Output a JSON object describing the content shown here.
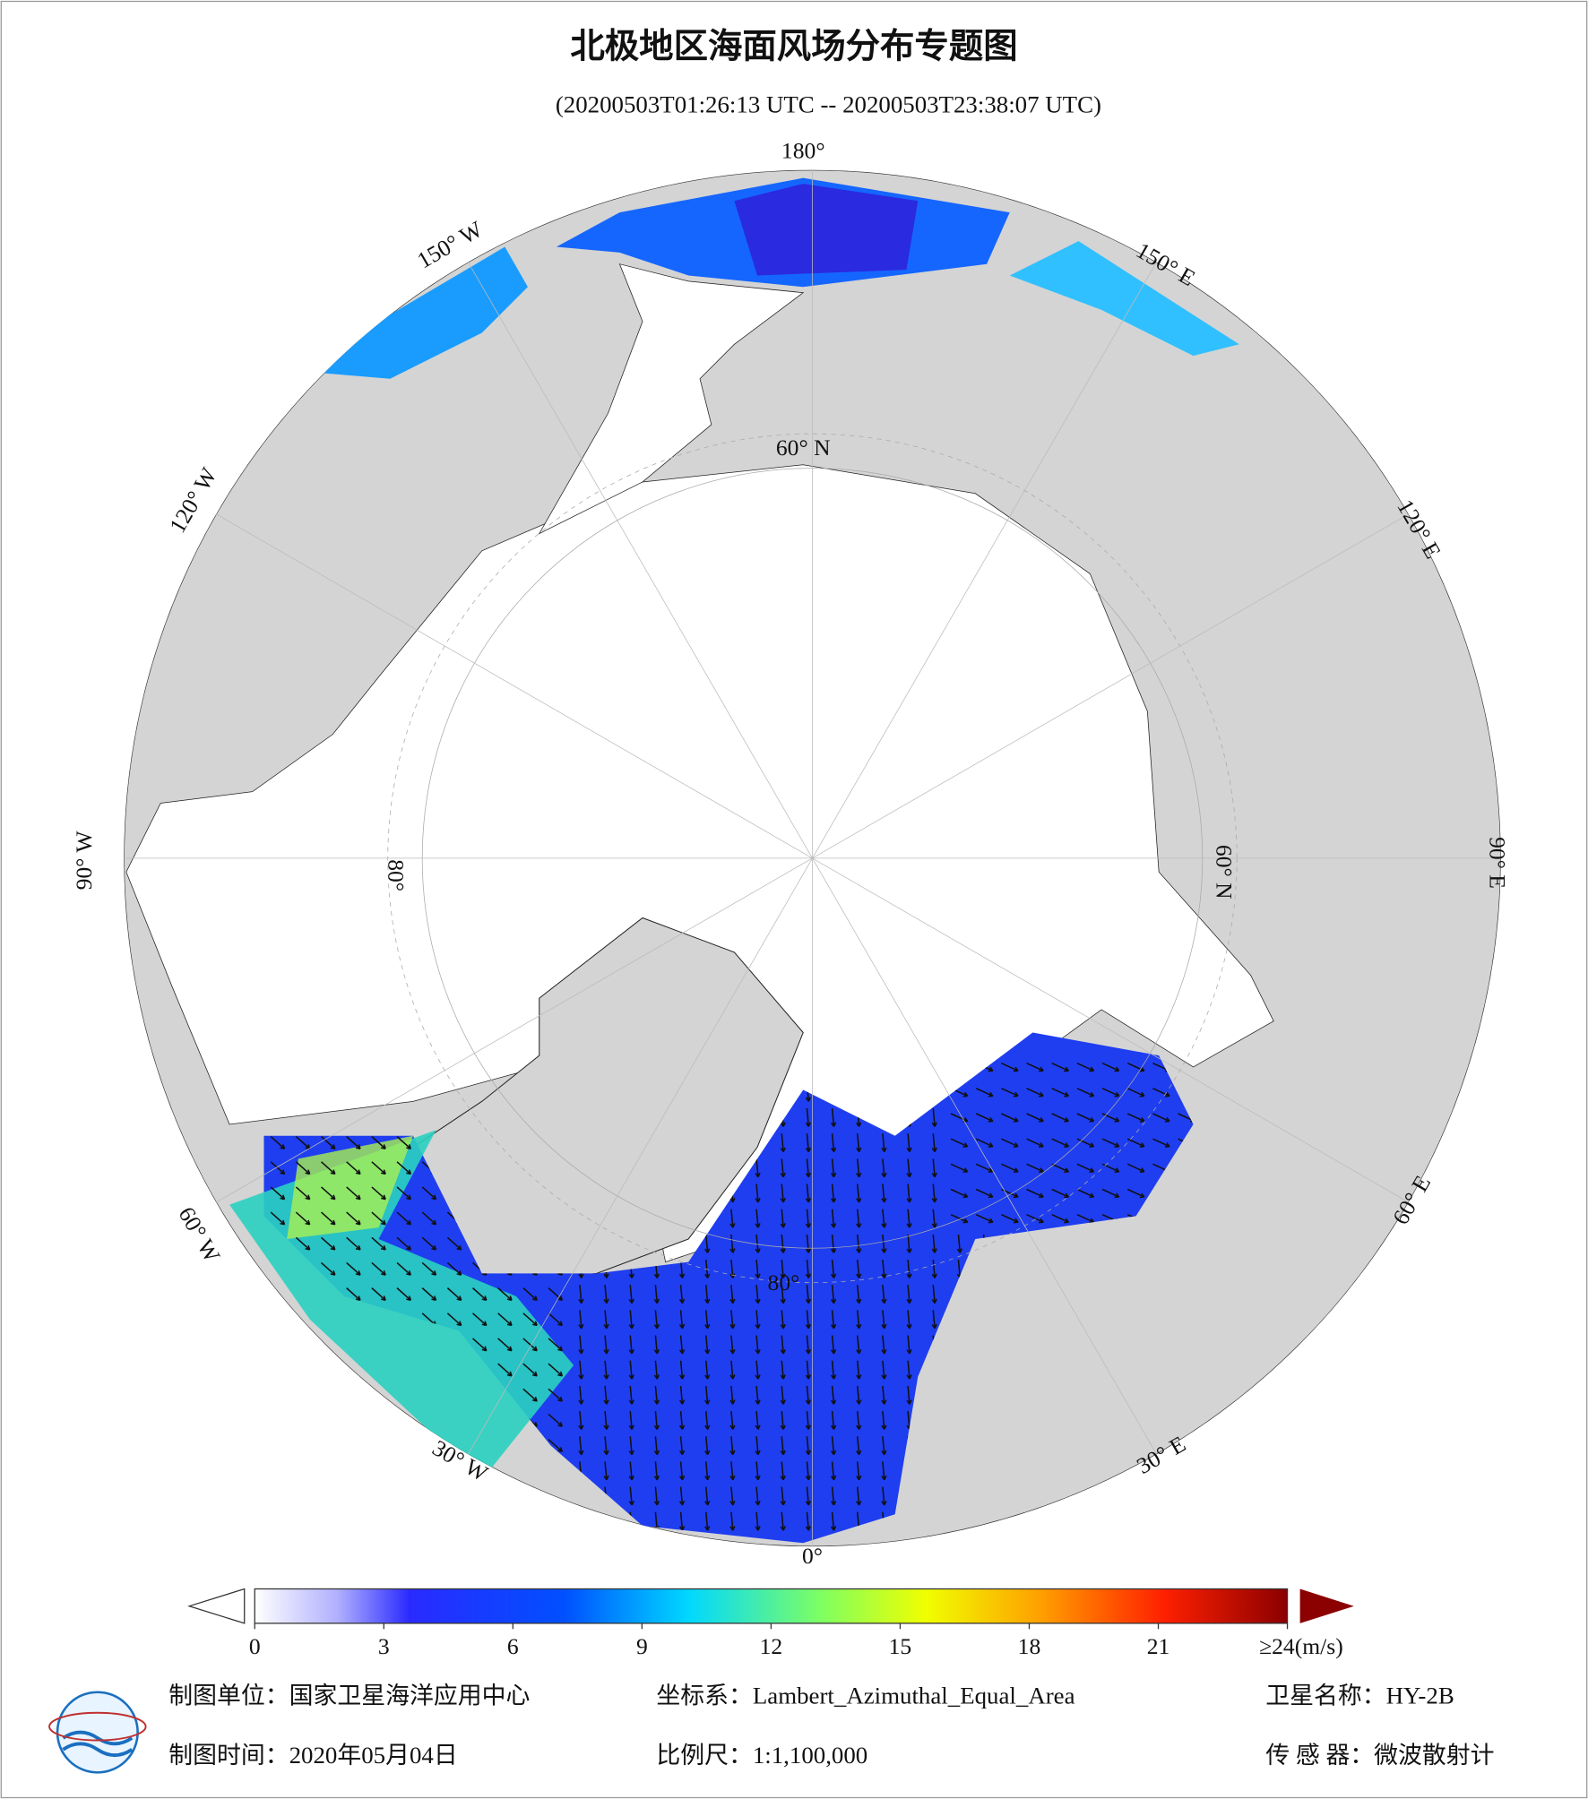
{
  "header": {
    "title": "北极地区海面风场分布专题图",
    "subtitle": "(20200503T01:26:13 UTC -- 20200503T23:38:07 UTC)"
  },
  "map": {
    "longitude_labels": [
      "180°",
      "150° E",
      "120° E",
      "90° E",
      "60° E",
      "30° E",
      "0°",
      "30° W",
      "60° W",
      "90° W",
      "120° W",
      "150° W"
    ],
    "latitude_labels": [
      "60° N",
      "60° N",
      "80°",
      "80°"
    ]
  },
  "colorbar": {
    "range": [
      0,
      24
    ],
    "ticks": [
      0,
      3,
      6,
      9,
      12,
      15,
      18,
      21,
      {
        "value": 24,
        "label": "≥24(m/s)"
      }
    ]
  },
  "footer": {
    "producer": "制图单位：国家卫星海洋应用中心",
    "coordinate_system": "坐标系：Lambert_Azimuthal_Equal_Area",
    "satellite": "卫星名称：HY-2B",
    "date": "制图时间：2020年05月04日",
    "scale": "比例尺：1:1,100,000",
    "sensor": "传 感 器：微波散射计"
  }
}
